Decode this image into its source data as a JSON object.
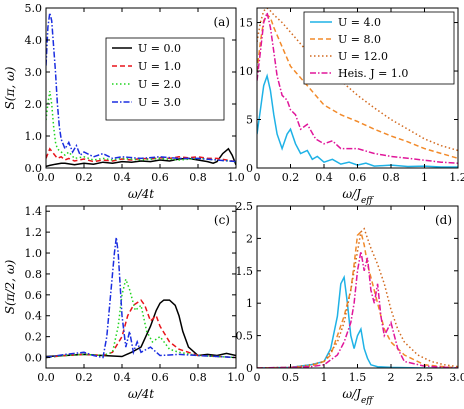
{
  "chart_data": [
    {
      "type": "line",
      "panel_label": "(a)",
      "xlabel": "ω/4t",
      "ylabel": "S(π, ω)",
      "xlim": [
        0,
        1.0
      ],
      "ylim": [
        0,
        5.0
      ],
      "xticks": [
        "0.0",
        "0.2",
        "0.4",
        "0.6",
        "0.8",
        "1.0"
      ],
      "yticks": [
        "0.0",
        "1.0",
        "2.0",
        "3.0",
        "4.0",
        "5.0"
      ],
      "legend_position": "upper-center",
      "series": [
        {
          "name": "U = 0.0",
          "color": "#000000",
          "dash": "solid",
          "x": [
            0,
            0.02,
            0.05,
            0.08,
            0.1,
            0.15,
            0.2,
            0.25,
            0.3,
            0.35,
            0.4,
            0.45,
            0.5,
            0.55,
            0.6,
            0.65,
            0.7,
            0.75,
            0.8,
            0.85,
            0.88,
            0.9,
            0.93,
            0.96,
            0.98,
            1.0
          ],
          "y": [
            0.05,
            0.08,
            0.12,
            0.15,
            0.15,
            0.1,
            0.15,
            0.12,
            0.18,
            0.15,
            0.2,
            0.18,
            0.22,
            0.2,
            0.25,
            0.22,
            0.28,
            0.3,
            0.25,
            0.2,
            0.15,
            0.2,
            0.45,
            0.6,
            0.4,
            0.1
          ]
        },
        {
          "name": "U = 1.0",
          "color": "#e8141b",
          "dash": "dashed",
          "x": [
            0,
            0.02,
            0.04,
            0.06,
            0.08,
            0.1,
            0.12,
            0.15,
            0.2,
            0.25,
            0.3,
            0.35,
            0.4,
            0.45,
            0.5,
            0.55,
            0.6,
            0.65,
            0.7,
            0.75,
            0.8,
            0.85,
            0.9,
            0.95,
            1.0
          ],
          "y": [
            0.3,
            0.6,
            0.45,
            0.3,
            0.35,
            0.25,
            0.3,
            0.22,
            0.28,
            0.2,
            0.25,
            0.22,
            0.28,
            0.25,
            0.3,
            0.28,
            0.32,
            0.3,
            0.35,
            0.32,
            0.35,
            0.3,
            0.3,
            0.25,
            0.2
          ]
        },
        {
          "name": "U = 2.0",
          "color": "#1ed41e",
          "dash": "dotted",
          "x": [
            0,
            0.01,
            0.02,
            0.03,
            0.04,
            0.05,
            0.06,
            0.08,
            0.1,
            0.12,
            0.15,
            0.2,
            0.25,
            0.3,
            0.35,
            0.4,
            0.5,
            0.6,
            0.7,
            0.8,
            0.9,
            1.0
          ],
          "y": [
            1.5,
            2.0,
            2.4,
            2.0,
            1.3,
            0.8,
            0.6,
            0.5,
            0.4,
            0.5,
            0.3,
            0.35,
            0.25,
            0.3,
            0.25,
            0.3,
            0.25,
            0.3,
            0.25,
            0.3,
            0.25,
            0.2
          ]
        },
        {
          "name": "U = 3.0",
          "color": "#1b2ee0",
          "dash": "dashdot",
          "x": [
            0,
            0.01,
            0.02,
            0.03,
            0.04,
            0.05,
            0.06,
            0.07,
            0.08,
            0.1,
            0.12,
            0.14,
            0.16,
            0.18,
            0.2,
            0.25,
            0.3,
            0.35,
            0.4,
            0.5,
            0.6,
            0.7,
            0.8,
            0.9,
            1.0
          ],
          "y": [
            3.2,
            4.4,
            4.85,
            4.6,
            3.8,
            3.0,
            2.0,
            1.3,
            0.9,
            0.6,
            0.8,
            0.5,
            0.7,
            0.4,
            0.5,
            0.35,
            0.45,
            0.3,
            0.35,
            0.3,
            0.35,
            0.3,
            0.3,
            0.25,
            0.2
          ]
        }
      ]
    },
    {
      "type": "line",
      "panel_label": "(b)",
      "xlabel": "ω/J_eff",
      "ylabel": "",
      "xlim": [
        0,
        1.2
      ],
      "ylim": [
        0,
        16.5
      ],
      "xticks": [
        "0",
        "0.2",
        "0.4",
        "0.6",
        "0.8",
        "1",
        "1.2"
      ],
      "yticks": [
        "0",
        "5",
        "10",
        "15"
      ],
      "legend_position": "upper-right",
      "series": [
        {
          "name": "U = 4.0",
          "color": "#1fb2e6",
          "dash": "solid",
          "x": [
            0,
            0.02,
            0.04,
            0.06,
            0.08,
            0.1,
            0.12,
            0.15,
            0.18,
            0.2,
            0.23,
            0.26,
            0.3,
            0.33,
            0.36,
            0.4,
            0.45,
            0.5,
            0.55,
            0.6,
            0.65,
            0.7,
            0.8,
            0.9,
            1.0,
            1.1,
            1.2
          ],
          "y": [
            3.5,
            6.0,
            8.5,
            9.5,
            8.0,
            5.5,
            3.5,
            2.0,
            3.5,
            4.0,
            2.5,
            1.5,
            1.8,
            0.9,
            1.2,
            0.6,
            0.9,
            0.4,
            0.6,
            0.3,
            0.5,
            0.2,
            0.3,
            0.15,
            0.2,
            0.1,
            0.1
          ]
        },
        {
          "name": "U = 8.0",
          "color": "#f28a2a",
          "dash": "dashed",
          "x": [
            0,
            0.02,
            0.04,
            0.06,
            0.08,
            0.1,
            0.15,
            0.2,
            0.25,
            0.3,
            0.35,
            0.4,
            0.5,
            0.6,
            0.7,
            0.8,
            0.9,
            1.0,
            1.1,
            1.2
          ],
          "y": [
            10.0,
            13.0,
            15.2,
            15.8,
            15.5,
            14.5,
            12.5,
            10.5,
            9.5,
            8.5,
            7.5,
            6.5,
            5.5,
            4.8,
            4.0,
            3.3,
            2.7,
            2.0,
            1.5,
            1.0
          ]
        },
        {
          "name": "U = 12.0",
          "color": "#d2691e",
          "dash": "dotted",
          "x": [
            0,
            0.02,
            0.04,
            0.06,
            0.08,
            0.1,
            0.15,
            0.2,
            0.25,
            0.3,
            0.4,
            0.5,
            0.6,
            0.7,
            0.8,
            0.9,
            1.0,
            1.1,
            1.2
          ],
          "y": [
            13.0,
            15.0,
            16.2,
            16.5,
            16.2,
            15.8,
            15.0,
            14.0,
            13.0,
            12.0,
            10.5,
            9.0,
            7.5,
            6.2,
            5.0,
            4.0,
            3.0,
            2.3,
            1.8
          ]
        },
        {
          "name": "Heis. J = 1.0",
          "color": "#e0169a",
          "dash": "dashdot",
          "x": [
            0,
            0.02,
            0.04,
            0.06,
            0.08,
            0.1,
            0.12,
            0.15,
            0.18,
            0.2,
            0.23,
            0.26,
            0.3,
            0.35,
            0.4,
            0.45,
            0.5,
            0.6,
            0.7,
            0.8,
            0.9,
            1.0,
            1.1,
            1.2
          ],
          "y": [
            9.0,
            12.0,
            15.0,
            16.0,
            14.5,
            12.0,
            9.5,
            7.5,
            7.0,
            6.0,
            5.5,
            4.0,
            4.5,
            3.0,
            2.5,
            2.8,
            2.0,
            2.0,
            1.5,
            1.2,
            1.0,
            0.8,
            0.6,
            0.5
          ]
        }
      ]
    },
    {
      "type": "line",
      "panel_label": "(c)",
      "xlabel": "ω/4t",
      "ylabel": "S(π/2, ω)",
      "xlim": [
        0,
        1.0
      ],
      "ylim": [
        -0.1,
        1.45
      ],
      "xticks": [
        "0.0",
        "0.2",
        "0.4",
        "0.6",
        "0.8",
        "1.0"
      ],
      "yticks": [
        "0.0",
        "0.2",
        "0.4",
        "0.6",
        "0.8",
        "1.0",
        "1.2",
        "1.4"
      ],
      "series": [
        {
          "name": "U = 0.0",
          "color": "#000000",
          "dash": "solid",
          "x": [
            0,
            0.1,
            0.2,
            0.3,
            0.4,
            0.45,
            0.5,
            0.55,
            0.58,
            0.6,
            0.62,
            0.65,
            0.68,
            0.7,
            0.72,
            0.75,
            0.8,
            0.85,
            0.9,
            0.95,
            1.0
          ],
          "y": [
            0.01,
            0.02,
            0.03,
            0.02,
            0.01,
            0.05,
            0.1,
            0.3,
            0.45,
            0.52,
            0.55,
            0.55,
            0.5,
            0.4,
            0.25,
            0.1,
            0.02,
            0.03,
            0.02,
            0.04,
            0.02
          ]
        },
        {
          "name": "U = 1.0",
          "color": "#e8141b",
          "dash": "dashed",
          "x": [
            0,
            0.1,
            0.2,
            0.3,
            0.35,
            0.4,
            0.43,
            0.46,
            0.5,
            0.52,
            0.55,
            0.58,
            0.6,
            0.65,
            0.7,
            0.75,
            0.8,
            0.9,
            1.0
          ],
          "y": [
            0.0,
            0.02,
            0.03,
            0.02,
            0.05,
            0.2,
            0.4,
            0.5,
            0.55,
            0.5,
            0.35,
            0.4,
            0.3,
            0.15,
            0.08,
            0.05,
            0.02,
            0.01,
            0.0
          ]
        },
        {
          "name": "U = 2.0",
          "color": "#1ed41e",
          "dash": "dotted",
          "x": [
            0,
            0.1,
            0.2,
            0.3,
            0.35,
            0.38,
            0.4,
            0.42,
            0.44,
            0.47,
            0.5,
            0.53,
            0.56,
            0.6,
            0.65,
            0.7,
            0.8,
            1.0
          ],
          "y": [
            0.0,
            0.02,
            0.03,
            0.02,
            0.05,
            0.3,
            0.6,
            0.75,
            0.65,
            0.45,
            0.5,
            0.25,
            0.15,
            0.2,
            0.08,
            0.05,
            0.02,
            0.0
          ]
        },
        {
          "name": "U = 3.0",
          "color": "#1b2ee0",
          "dash": "dashdot",
          "x": [
            0,
            0.1,
            0.2,
            0.25,
            0.3,
            0.32,
            0.34,
            0.36,
            0.37,
            0.38,
            0.4,
            0.42,
            0.44,
            0.46,
            0.48,
            0.5,
            0.55,
            0.6,
            0.7,
            0.8,
            1.0
          ],
          "y": [
            0.0,
            0.03,
            0.05,
            0.02,
            0.0,
            0.2,
            0.6,
            1.0,
            1.15,
            1.0,
            0.4,
            0.1,
            0.25,
            0.05,
            0.15,
            0.05,
            0.1,
            0.02,
            0.03,
            0.02,
            0.0
          ]
        }
      ]
    },
    {
      "type": "line",
      "panel_label": "(d)",
      "xlabel": "ω/J_eff",
      "ylabel": "",
      "xlim": [
        0,
        3.0
      ],
      "ylim": [
        0,
        2.5
      ],
      "xticks": [
        "0",
        "0.5",
        "1",
        "1.5",
        "2",
        "2.5",
        "3.0"
      ],
      "yticks": [
        "0",
        "0.5",
        "1",
        "1.5",
        "2",
        "2.5"
      ],
      "series": [
        {
          "name": "U = 4.0",
          "color": "#1fb2e6",
          "dash": "solid",
          "x": [
            0,
            0.5,
            0.8,
            1.0,
            1.1,
            1.2,
            1.25,
            1.3,
            1.35,
            1.4,
            1.45,
            1.5,
            1.55,
            1.6,
            1.65,
            1.7,
            1.8,
            2.0,
            2.5,
            3.0
          ],
          "y": [
            0.0,
            0.01,
            0.05,
            0.1,
            0.3,
            0.8,
            1.3,
            1.4,
            1.0,
            0.5,
            0.3,
            0.5,
            0.6,
            0.3,
            0.15,
            0.05,
            0.02,
            0.01,
            0.0,
            0.0
          ]
        },
        {
          "name": "U = 8.0",
          "color": "#f28a2a",
          "dash": "dashed",
          "x": [
            0,
            0.5,
            0.8,
            1.0,
            1.1,
            1.2,
            1.3,
            1.4,
            1.45,
            1.5,
            1.55,
            1.6,
            1.65,
            1.7,
            1.8,
            1.9,
            2.0,
            2.2,
            2.5,
            3.0
          ],
          "y": [
            0.0,
            0.01,
            0.03,
            0.1,
            0.2,
            0.5,
            0.8,
            1.2,
            1.6,
            2.05,
            2.1,
            1.9,
            1.6,
            1.4,
            1.0,
            0.6,
            0.4,
            0.2,
            0.05,
            0.0
          ]
        },
        {
          "name": "U = 12.0",
          "color": "#d2691e",
          "dash": "dotted",
          "x": [
            0,
            0.5,
            0.8,
            1.0,
            1.2,
            1.3,
            1.4,
            1.5,
            1.55,
            1.6,
            1.65,
            1.7,
            1.8,
            1.9,
            2.0,
            2.1,
            2.2,
            2.4,
            2.6,
            2.8,
            3.0
          ],
          "y": [
            0.0,
            0.01,
            0.05,
            0.1,
            0.4,
            0.7,
            1.2,
            1.8,
            2.1,
            2.15,
            2.0,
            1.85,
            1.6,
            1.3,
            0.9,
            0.6,
            0.4,
            0.2,
            0.1,
            0.05,
            0.02
          ]
        },
        {
          "name": "Heis. J = 1.0",
          "color": "#e0169a",
          "dash": "dashdot",
          "x": [
            0,
            0.5,
            0.8,
            1.0,
            1.2,
            1.3,
            1.4,
            1.45,
            1.5,
            1.55,
            1.6,
            1.65,
            1.7,
            1.75,
            1.8,
            1.85,
            1.9,
            2.0,
            2.1,
            2.2,
            2.5,
            3.0
          ],
          "y": [
            0.0,
            0.01,
            0.02,
            0.05,
            0.2,
            0.4,
            0.7,
            1.0,
            1.5,
            1.8,
            1.5,
            1.7,
            1.2,
            1.0,
            1.3,
            0.8,
            0.5,
            0.7,
            0.3,
            0.1,
            0.03,
            0.0
          ]
        }
      ]
    }
  ]
}
